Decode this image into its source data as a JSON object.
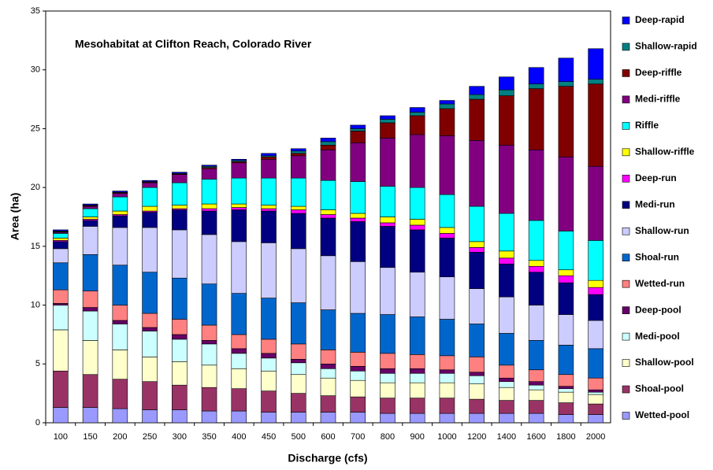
{
  "chart_data": {
    "type": "stacked_bar",
    "title": "Mesohabitat at Clifton Reach, Colorado River",
    "x_label": "Discharge (cfs)",
    "y_label": "Area (ha)",
    "categories": [
      "100",
      "150",
      "200",
      "250",
      "300",
      "350",
      "400",
      "450",
      "500",
      "600",
      "700",
      "800",
      "900",
      "1000",
      "1200",
      "1400",
      "1600",
      "1800",
      "2000"
    ],
    "ylim": [
      0,
      35
    ],
    "yticks": [
      0,
      5,
      10,
      15,
      20,
      25,
      30,
      35
    ],
    "legend": "right",
    "series": [
      {
        "name": "Wetted-pool",
        "color": "#9999ff",
        "values": [
          1.3,
          1.3,
          1.2,
          1.1,
          1.1,
          1.0,
          1.0,
          0.9,
          0.9,
          0.9,
          0.9,
          0.8,
          0.8,
          0.8,
          0.8,
          0.8,
          0.8,
          0.7,
          0.7
        ]
      },
      {
        "name": "Shoal-pool",
        "color": "#993366",
        "values": [
          3.1,
          2.8,
          2.5,
          2.4,
          2.1,
          2.0,
          1.9,
          1.8,
          1.6,
          1.4,
          1.3,
          1.3,
          1.3,
          1.3,
          1.2,
          1.1,
          1.1,
          1.0,
          0.9
        ]
      },
      {
        "name": "Shallow-pool",
        "color": "#ffffcc",
        "values": [
          3.5,
          2.9,
          2.5,
          2.1,
          2.0,
          1.9,
          1.7,
          1.7,
          1.6,
          1.5,
          1.4,
          1.3,
          1.3,
          1.3,
          1.3,
          1.1,
          0.9,
          0.9,
          0.8
        ]
      },
      {
        "name": "Medi-pool",
        "color": "#ccffff",
        "values": [
          2.1,
          2.5,
          2.2,
          2.2,
          1.9,
          1.8,
          1.3,
          1.1,
          1.0,
          0.8,
          0.8,
          0.8,
          0.8,
          0.8,
          0.7,
          0.5,
          0.4,
          0.3,
          0.2
        ]
      },
      {
        "name": "Deep-pool",
        "color": "#660066",
        "values": [
          0.15,
          0.3,
          0.3,
          0.3,
          0.4,
          0.3,
          0.4,
          0.4,
          0.3,
          0.4,
          0.4,
          0.4,
          0.4,
          0.3,
          0.3,
          0.3,
          0.3,
          0.2,
          0.2
        ]
      },
      {
        "name": "Wetted-run",
        "color": "#ff8080",
        "values": [
          1.15,
          1.4,
          1.3,
          1.2,
          1.3,
          1.3,
          1.2,
          1.2,
          1.3,
          1.2,
          1.2,
          1.3,
          1.2,
          1.2,
          1.3,
          1.1,
          1.0,
          1.0,
          1.0
        ]
      },
      {
        "name": "Shoal-run",
        "color": "#0066cc",
        "values": [
          2.3,
          3.1,
          3.4,
          3.5,
          3.5,
          3.5,
          3.5,
          3.5,
          3.5,
          3.4,
          3.3,
          3.3,
          3.2,
          3.1,
          2.8,
          2.7,
          2.5,
          2.5,
          2.5
        ]
      },
      {
        "name": "Shallow-run",
        "color": "#ccccff",
        "values": [
          1.2,
          2.4,
          3.2,
          3.8,
          4.1,
          4.2,
          4.4,
          4.7,
          4.6,
          4.6,
          4.4,
          4.0,
          3.8,
          3.6,
          3.0,
          3.1,
          3.0,
          2.6,
          2.4
        ]
      },
      {
        "name": "Medi-run",
        "color": "#000080",
        "values": [
          0.6,
          0.5,
          1.0,
          1.3,
          1.7,
          2.0,
          2.7,
          2.7,
          3.0,
          3.2,
          3.4,
          3.5,
          3.6,
          3.3,
          3.1,
          2.8,
          2.8,
          2.7,
          2.2
        ]
      },
      {
        "name": "Deep-run",
        "color": "#ff00ff",
        "values": [
          0.1,
          0.1,
          0.1,
          0.1,
          0.1,
          0.2,
          0.2,
          0.2,
          0.3,
          0.3,
          0.3,
          0.3,
          0.4,
          0.4,
          0.4,
          0.5,
          0.5,
          0.6,
          0.6
        ]
      },
      {
        "name": "Shallow-riffle",
        "color": "#ffff00",
        "values": [
          0.2,
          0.2,
          0.3,
          0.4,
          0.3,
          0.4,
          0.3,
          0.3,
          0.3,
          0.4,
          0.4,
          0.5,
          0.5,
          0.5,
          0.5,
          0.6,
          0.5,
          0.5,
          0.6
        ]
      },
      {
        "name": "Riffle",
        "color": "#00ffff",
        "values": [
          0.4,
          0.7,
          1.2,
          1.6,
          1.9,
          2.1,
          2.2,
          2.3,
          2.4,
          2.5,
          2.7,
          2.6,
          2.7,
          2.8,
          3.0,
          3.2,
          3.4,
          3.3,
          3.4
        ]
      },
      {
        "name": "Medi-riffle",
        "color": "#800080",
        "values": [
          0.1,
          0.2,
          0.3,
          0.4,
          0.7,
          0.9,
          1.3,
          1.6,
          1.9,
          2.6,
          3.3,
          4.1,
          4.5,
          5.0,
          5.6,
          5.8,
          6.0,
          6.3,
          6.3
        ]
      },
      {
        "name": "Deep-riffle",
        "color": "#800000",
        "values": [
          0.05,
          0.05,
          0.05,
          0.05,
          0.05,
          0.1,
          0.1,
          0.2,
          0.2,
          0.4,
          1.0,
          1.3,
          1.6,
          2.3,
          3.5,
          4.2,
          5.2,
          6.0,
          7.0
        ]
      },
      {
        "name": "Shallow-rapid",
        "color": "#008080",
        "values": [
          0.05,
          0.05,
          0.05,
          0.05,
          0.05,
          0.1,
          0.1,
          0.1,
          0.2,
          0.3,
          0.2,
          0.3,
          0.3,
          0.4,
          0.4,
          0.5,
          0.4,
          0.4,
          0.4
        ]
      },
      {
        "name": "Deep-rapid",
        "color": "#0000ff",
        "values": [
          0.1,
          0.1,
          0.1,
          0.1,
          0.1,
          0.1,
          0.1,
          0.2,
          0.2,
          0.3,
          0.3,
          0.3,
          0.4,
          0.3,
          0.7,
          1.1,
          1.4,
          2.0,
          2.6
        ]
      }
    ]
  }
}
